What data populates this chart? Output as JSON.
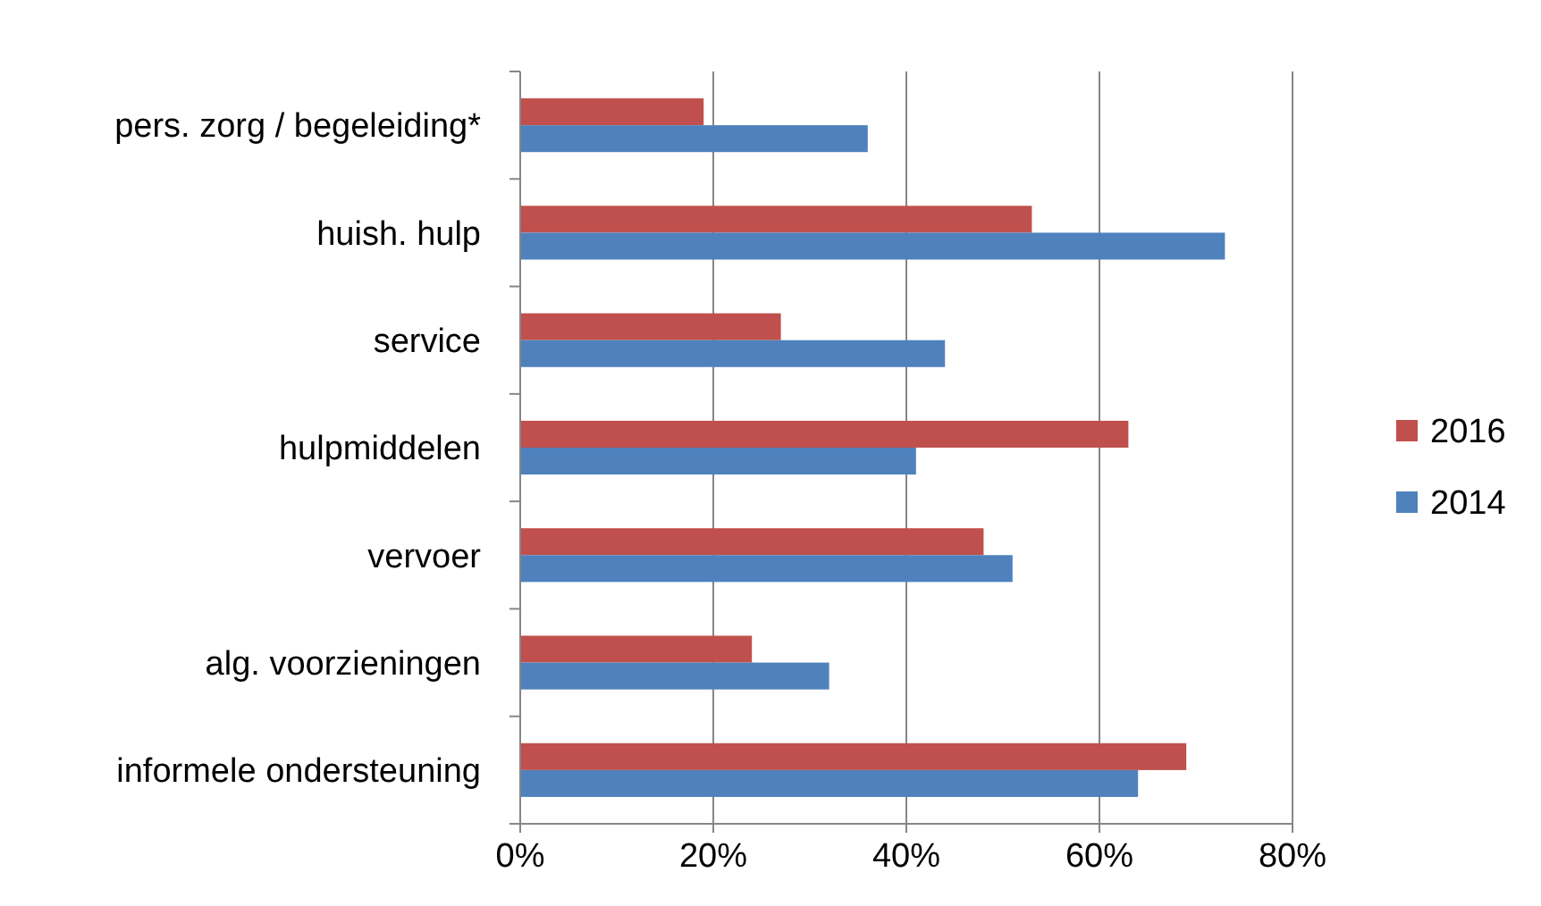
{
  "chart_data": {
    "type": "bar",
    "orientation": "horizontal",
    "categories": [
      "pers. zorg / begeleiding*",
      "huish. hulp",
      "service",
      "hulpmiddelen",
      "vervoer",
      "alg. voorzieningen",
      "informele ondersteuning"
    ],
    "series": [
      {
        "name": "2016",
        "color": "#c0504d",
        "values": [
          19,
          53,
          27,
          63,
          48,
          24,
          69
        ]
      },
      {
        "name": "2014",
        "color": "#4f81bd",
        "values": [
          36,
          73,
          44,
          41,
          51,
          32,
          64
        ]
      }
    ],
    "xlim": [
      0,
      80
    ],
    "xticks": [
      {
        "value": 0,
        "label": "0%"
      },
      {
        "value": 20,
        "label": "20%"
      },
      {
        "value": 40,
        "label": "40%"
      },
      {
        "value": 60,
        "label": "60%"
      },
      {
        "value": 80,
        "label": "80%"
      }
    ],
    "grid": "x",
    "legend": "right"
  }
}
